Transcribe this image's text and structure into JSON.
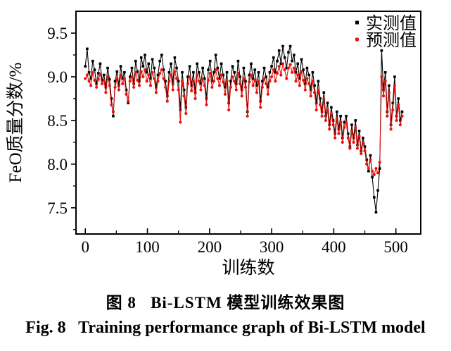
{
  "figure": {
    "caption_cn": "图 8   Bi-LSTM 模型训练效果图",
    "caption_en": "Fig. 8   Training performance graph of Bi-LSTM model"
  },
  "chart_data": {
    "type": "line",
    "title": "",
    "xlabel": "训练数",
    "ylabel": "FeO质量分数/%",
    "xlim": [
      -15,
      540
    ],
    "ylim": [
      7.2,
      9.75
    ],
    "xticks": [
      0,
      100,
      200,
      300,
      400,
      500
    ],
    "xtick_labels": [
      "0",
      "100",
      "200",
      "300",
      "400",
      "500"
    ],
    "x_minor_ticks": [
      50,
      150,
      250,
      350,
      450
    ],
    "yticks": [
      7.5,
      8.0,
      8.5,
      9.0,
      9.5
    ],
    "ytick_labels": [
      "7.5",
      "8.0",
      "8.5",
      "9.0",
      "9.5"
    ],
    "y_minor_ticks": [
      7.25,
      7.75,
      8.25,
      8.75,
      9.25
    ],
    "grid": false,
    "legend_position": "top-right-inside",
    "colors": {
      "measured": "#000000",
      "predicted": "#e8130c"
    },
    "x": [
      0,
      3,
      6,
      9,
      12,
      15,
      18,
      21,
      24,
      27,
      30,
      33,
      36,
      39,
      42,
      45,
      48,
      51,
      54,
      57,
      60,
      63,
      66,
      69,
      72,
      75,
      78,
      81,
      84,
      87,
      90,
      93,
      96,
      99,
      102,
      105,
      108,
      111,
      114,
      117,
      120,
      123,
      126,
      129,
      132,
      135,
      138,
      141,
      144,
      147,
      150,
      153,
      156,
      159,
      162,
      165,
      168,
      171,
      174,
      177,
      180,
      183,
      186,
      189,
      192,
      195,
      198,
      201,
      204,
      207,
      210,
      213,
      216,
      219,
      222,
      225,
      228,
      231,
      234,
      237,
      240,
      243,
      246,
      249,
      252,
      255,
      258,
      261,
      264,
      267,
      270,
      273,
      276,
      279,
      282,
      285,
      288,
      291,
      294,
      297,
      300,
      303,
      306,
      309,
      312,
      315,
      318,
      321,
      324,
      327,
      330,
      333,
      336,
      339,
      342,
      345,
      348,
      351,
      354,
      357,
      360,
      363,
      366,
      369,
      372,
      375,
      378,
      381,
      384,
      387,
      390,
      393,
      396,
      399,
      402,
      405,
      408,
      411,
      414,
      417,
      420,
      423,
      426,
      429,
      432,
      435,
      438,
      441,
      444,
      447,
      450,
      453,
      456,
      459,
      462,
      465,
      468,
      471,
      474,
      477,
      480,
      483,
      486,
      489,
      492,
      495,
      498,
      501,
      504,
      507,
      510
    ],
    "series": [
      {
        "name": "实测值",
        "color_key": "measured",
        "marker": "square",
        "values": [
          9.12,
          9.32,
          9.05,
          8.98,
          9.18,
          9.08,
          8.92,
          9.04,
          9.15,
          8.96,
          9.02,
          8.88,
          9.1,
          8.97,
          8.75,
          8.55,
          8.95,
          9.06,
          8.9,
          9.12,
          8.98,
          9.05,
          8.85,
          8.7,
          9.0,
          9.1,
          8.92,
          9.18,
          9.06,
          8.95,
          9.22,
          9.12,
          9.25,
          9.05,
          9.15,
          8.98,
          9.2,
          9.1,
          8.88,
          9.02,
          9.18,
          9.25,
          9.08,
          8.95,
          8.78,
          9.05,
          9.15,
          8.92,
          9.22,
          9.1,
          8.95,
          8.62,
          9.05,
          8.85,
          8.65,
          9.0,
          9.12,
          8.9,
          9.05,
          8.82,
          9.15,
          9.05,
          8.92,
          9.1,
          8.98,
          8.75,
          9.08,
          9.18,
          8.95,
          9.05,
          9.25,
          9.1,
          8.98,
          9.15,
          9.02,
          8.88,
          9.05,
          8.7,
          8.95,
          9.12,
          9.05,
          8.92,
          9.18,
          9.0,
          8.85,
          9.1,
          8.95,
          8.6,
          9.02,
          9.15,
          8.98,
          9.08,
          8.9,
          9.05,
          8.72,
          8.95,
          9.1,
          9.0,
          8.88,
          9.05,
          9.12,
          9.22,
          9.05,
          9.18,
          9.3,
          9.15,
          9.35,
          9.22,
          9.1,
          9.28,
          9.35,
          9.18,
          9.25,
          9.05,
          9.15,
          8.98,
          9.2,
          9.08,
          8.92,
          9.1,
          9.02,
          8.85,
          9.05,
          8.9,
          8.7,
          8.95,
          8.75,
          8.6,
          8.82,
          8.55,
          8.7,
          8.45,
          8.65,
          8.5,
          8.35,
          8.6,
          8.4,
          8.55,
          8.3,
          8.48,
          8.55,
          8.35,
          8.2,
          8.45,
          8.3,
          8.5,
          8.22,
          8.38,
          8.15,
          8.3,
          8.2,
          8.05,
          7.92,
          8.1,
          7.85,
          7.62,
          7.45,
          7.7,
          7.95,
          9.3,
          8.85,
          9.05,
          8.6,
          8.9,
          8.45,
          8.7,
          9.0,
          8.55,
          8.75,
          8.5,
          8.6
        ]
      },
      {
        "name": "预测值",
        "color_key": "predicted",
        "marker": "circle",
        "values": [
          8.98,
          9.02,
          8.95,
          8.9,
          9.05,
          8.96,
          8.88,
          8.97,
          9.03,
          8.92,
          8.96,
          8.82,
          9.0,
          8.9,
          8.68,
          8.6,
          8.88,
          8.98,
          8.85,
          9.02,
          8.92,
          8.98,
          8.8,
          8.72,
          8.95,
          9.0,
          8.88,
          9.05,
          8.96,
          8.9,
          9.06,
          9.0,
          9.08,
          8.95,
          9.02,
          8.9,
          9.05,
          8.98,
          8.82,
          8.95,
          9.04,
          9.08,
          8.98,
          8.88,
          8.72,
          8.95,
          9.02,
          8.85,
          9.06,
          8.98,
          8.85,
          8.48,
          8.95,
          8.78,
          8.58,
          8.92,
          9.0,
          8.84,
          8.95,
          8.75,
          9.02,
          8.95,
          8.85,
          8.98,
          8.9,
          8.68,
          8.96,
          9.04,
          8.88,
          8.95,
          9.08,
          8.98,
          8.9,
          9.02,
          8.94,
          8.8,
          8.95,
          8.62,
          8.88,
          9.0,
          8.95,
          8.85,
          9.04,
          8.92,
          8.78,
          8.98,
          8.88,
          8.55,
          8.94,
          9.02,
          8.9,
          8.96,
          8.82,
          8.95,
          8.65,
          8.88,
          8.98,
          8.92,
          8.8,
          8.95,
          9.0,
          9.08,
          8.95,
          9.04,
          9.12,
          9.02,
          9.15,
          9.08,
          8.98,
          9.1,
          9.14,
          9.05,
          9.1,
          8.95,
          9.02,
          8.9,
          9.06,
          8.96,
          8.85,
          8.98,
          8.92,
          8.78,
          8.95,
          8.82,
          8.62,
          8.85,
          8.68,
          8.55,
          8.75,
          8.5,
          8.62,
          8.4,
          8.58,
          8.45,
          8.3,
          8.52,
          8.35,
          8.48,
          8.25,
          8.42,
          8.48,
          8.3,
          8.18,
          8.38,
          8.25,
          8.42,
          8.18,
          8.32,
          8.12,
          8.25,
          8.15,
          8.0,
          7.95,
          8.05,
          7.92,
          7.88,
          7.95,
          7.9,
          8.02,
          9.0,
          8.78,
          8.95,
          8.55,
          8.82,
          8.4,
          8.62,
          8.9,
          8.5,
          8.68,
          8.45,
          8.55
        ]
      }
    ]
  }
}
